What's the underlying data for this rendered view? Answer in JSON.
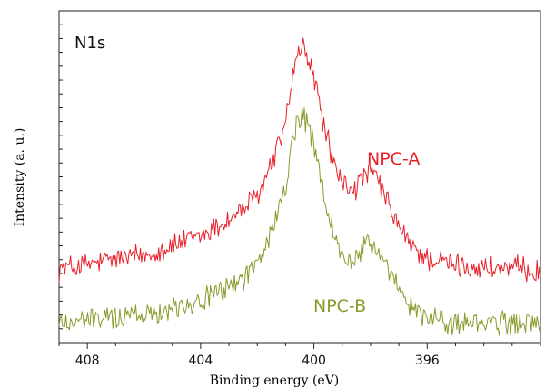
{
  "chart_data": {
    "type": "line",
    "panel_label": "N1s",
    "xlabel": "Binding energy (eV)",
    "ylabel": "Intensity (a. u.)",
    "xlim": [
      409.0,
      392.0
    ],
    "x_reversed": true,
    "x_ticks": [
      408,
      404,
      400,
      396
    ],
    "y_ticks_visible": false,
    "ylim": [
      0,
      100
    ],
    "series": [
      {
        "name": "NPC-A",
        "color": "#e8202a",
        "points": [
          [
            409.0,
            23
          ],
          [
            408.0,
            24
          ],
          [
            407.0,
            26
          ],
          [
            406.0,
            27
          ],
          [
            405.0,
            30
          ],
          [
            404.0,
            33
          ],
          [
            403.0,
            38
          ],
          [
            402.0,
            45
          ],
          [
            401.5,
            55
          ],
          [
            401.0,
            68
          ],
          [
            400.8,
            80
          ],
          [
            400.6,
            88
          ],
          [
            400.4,
            92
          ],
          [
            400.2,
            88
          ],
          [
            400.0,
            82
          ],
          [
            399.6,
            66
          ],
          [
            399.2,
            52
          ],
          [
            398.8,
            48
          ],
          [
            398.5,
            48
          ],
          [
            398.2,
            52
          ],
          [
            397.8,
            52
          ],
          [
            397.4,
            43
          ],
          [
            397.0,
            36
          ],
          [
            396.6,
            30
          ],
          [
            396.0,
            26
          ],
          [
            395.0,
            24
          ],
          [
            394.0,
            23
          ],
          [
            393.0,
            23
          ],
          [
            392.0,
            22
          ]
        ]
      },
      {
        "name": "NPC-B",
        "color": "#8a9a2a",
        "points": [
          [
            409.0,
            6
          ],
          [
            408.0,
            7
          ],
          [
            407.0,
            8
          ],
          [
            406.0,
            9
          ],
          [
            405.0,
            11
          ],
          [
            404.0,
            13
          ],
          [
            403.0,
            17
          ],
          [
            402.0,
            24
          ],
          [
            401.5,
            34
          ],
          [
            401.0,
            48
          ],
          [
            400.8,
            60
          ],
          [
            400.6,
            68
          ],
          [
            400.4,
            71
          ],
          [
            400.2,
            67
          ],
          [
            400.0,
            60
          ],
          [
            399.6,
            44
          ],
          [
            399.2,
            30
          ],
          [
            398.8,
            25
          ],
          [
            398.5,
            26
          ],
          [
            398.2,
            31
          ],
          [
            397.8,
            30
          ],
          [
            397.4,
            22
          ],
          [
            397.0,
            16
          ],
          [
            396.6,
            11
          ],
          [
            396.0,
            8
          ],
          [
            395.0,
            6
          ],
          [
            394.0,
            6
          ],
          [
            393.0,
            6
          ],
          [
            392.0,
            6
          ]
        ]
      }
    ]
  }
}
